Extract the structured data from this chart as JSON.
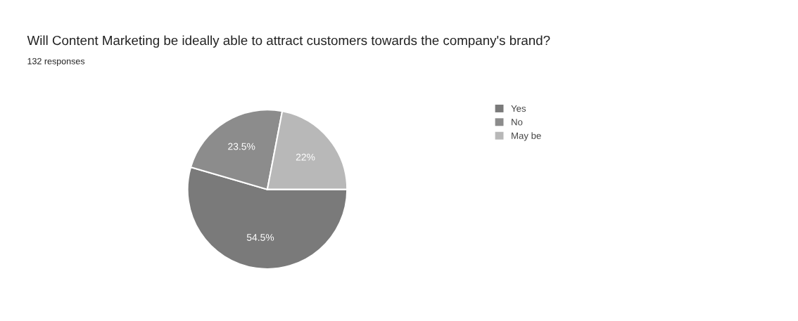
{
  "chart_data": {
    "type": "pie",
    "title": "Will Content Marketing be ideally able to attract customers towards the company's brand?",
    "subtitle": "132 responses",
    "categories": [
      "Yes",
      "No",
      "May be"
    ],
    "values": [
      54.5,
      23.5,
      22
    ],
    "value_labels": [
      "54.5%",
      "23.5%",
      "22%"
    ],
    "colors": [
      "#7a7a7a",
      "#8c8c8c",
      "#b8b8b8"
    ],
    "legend": "right"
  }
}
